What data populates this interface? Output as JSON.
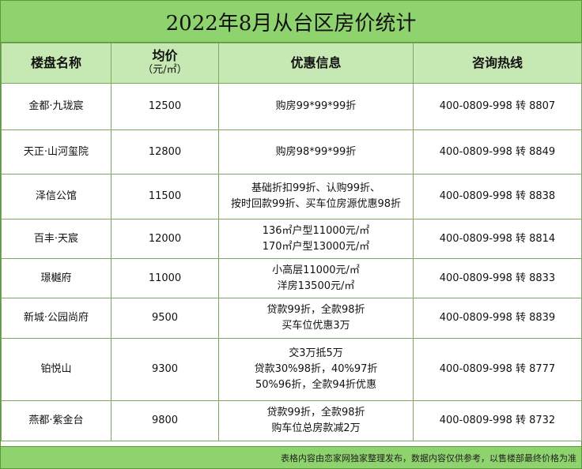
{
  "title": "2022年8月从台区房价统计",
  "headers": {
    "name": "楼盘名称",
    "price": "均价",
    "price_unit": "（元/㎡）",
    "offer": "优惠信息",
    "hotline": "咨询热线"
  },
  "rows": [
    {
      "name": "金都·九珑宸",
      "price": "12500",
      "offer": [
        "购房99*99*99折"
      ],
      "hotline": "400-0809-998 转 8807"
    },
    {
      "name": "天正·山河玺院",
      "price": "12800",
      "offer": [
        "购房98*99*99折"
      ],
      "hotline": "400-0809-998 转 8849"
    },
    {
      "name": "泽信公馆",
      "price": "11500",
      "offer": [
        "基础折扣99折、认购99折、",
        "按时回款99折、买车位房源优惠98折"
      ],
      "hotline": "400-0809-998 转 8838"
    },
    {
      "name": "百丰·天宸",
      "price": "12000",
      "offer": [
        "136㎡户型11000元/㎡",
        "170㎡户型13000元/㎡"
      ],
      "hotline": "400-0809-998 转 8814"
    },
    {
      "name": "璟樾府",
      "price": "11000",
      "offer": [
        "小高层11000元/㎡",
        "洋房13500元/㎡"
      ],
      "hotline": "400-0809-998 转 8833"
    },
    {
      "name": "新城·公园尚府",
      "price": "9500",
      "offer": [
        "贷款99折，全款98折",
        "买车位优惠3万"
      ],
      "hotline": "400-0809-998 转 8839"
    },
    {
      "name": "铂悦山",
      "price": "9300",
      "offer": [
        "交3万抵5万",
        "贷款30%98折，40%97折",
        "50%96折，全款94折优惠"
      ],
      "hotline": "400-0809-998 转 8777"
    },
    {
      "name": "燕都·紫金台",
      "price": "9800",
      "offer": [
        "贷款99折，全款98折",
        "购车位总房款减2万"
      ],
      "hotline": "400-0809-998 转 8732"
    }
  ],
  "footer": "表格内容由恋家网独家整理发布，数据内容仅供参考，以售楼部最终价格为准",
  "colors": {
    "title_bg": "#8fd36e",
    "header_bg": "#c6e8b2",
    "border": "#7aa864"
  }
}
